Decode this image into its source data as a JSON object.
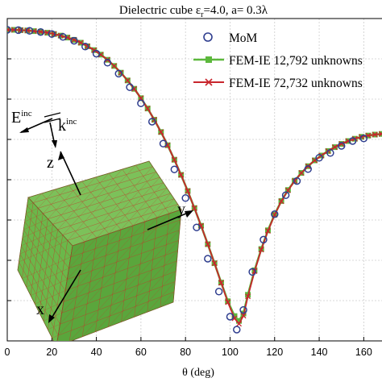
{
  "chart_data": {
    "type": "line",
    "title_main": "Dielectric cube ε",
    "title_sub": "r",
    "title_rest": "=4.0, a= 0.3λ",
    "xlabel_main": "θ",
    "xlabel_rest": " (deg)",
    "xlim": [
      0,
      170
    ],
    "ylim": [
      0,
      1
    ],
    "xticks": [
      0,
      20,
      40,
      60,
      80,
      100,
      120,
      140,
      160
    ],
    "grid": true,
    "legend_position": "top-right",
    "series": [
      {
        "name": "MoM",
        "style": "circle-markers",
        "color": "#2f3e8f",
        "x": [
          0,
          5,
          10,
          15,
          20,
          25,
          30,
          35,
          40,
          45,
          50,
          55,
          60,
          65,
          70,
          75,
          80,
          85,
          90,
          95,
          100,
          103,
          106,
          110,
          115,
          120,
          125,
          130,
          135,
          140,
          145,
          150,
          155,
          160
        ],
        "y": [
          0.965,
          0.964,
          0.962,
          0.958,
          0.952,
          0.943,
          0.931,
          0.913,
          0.891,
          0.863,
          0.829,
          0.787,
          0.737,
          0.68,
          0.612,
          0.532,
          0.443,
          0.352,
          0.255,
          0.153,
          0.075,
          0.035,
          0.096,
          0.214,
          0.314,
          0.393,
          0.452,
          0.496,
          0.533,
          0.568,
          0.583,
          0.605,
          0.62,
          0.628
        ]
      },
      {
        "name": "FEM-IE 12,792 unknowns",
        "style": "square-markers",
        "color": "#5cb83c",
        "x": [
          0,
          3,
          6,
          9,
          12,
          15,
          18,
          21,
          24,
          27,
          30,
          33,
          36,
          39,
          42,
          45,
          48,
          51,
          54,
          57,
          60,
          63,
          66,
          69,
          72,
          75,
          78,
          81,
          84,
          87,
          90,
          93,
          96,
          99,
          102,
          104,
          106,
          108,
          111,
          114,
          117,
          120,
          123,
          126,
          129,
          132,
          135,
          138,
          141,
          144,
          147,
          150,
          153,
          156,
          159,
          162,
          165,
          168
        ],
        "y": [
          0.965,
          0.965,
          0.964,
          0.963,
          0.961,
          0.959,
          0.956,
          0.952,
          0.947,
          0.941,
          0.934,
          0.925,
          0.914,
          0.902,
          0.888,
          0.872,
          0.853,
          0.832,
          0.808,
          0.782,
          0.753,
          0.721,
          0.686,
          0.648,
          0.607,
          0.562,
          0.515,
          0.465,
          0.412,
          0.357,
          0.3,
          0.241,
          0.181,
          0.123,
          0.077,
          0.062,
          0.085,
          0.143,
          0.219,
          0.285,
          0.343,
          0.392,
          0.434,
          0.468,
          0.497,
          0.521,
          0.542,
          0.56,
          0.575,
          0.589,
          0.601,
          0.611,
          0.62,
          0.627,
          0.633,
          0.637,
          0.64,
          0.642
        ]
      },
      {
        "name": "FEM-IE 72,732 unknowns",
        "style": "x-markers",
        "color": "#c8262d",
        "x": [
          0,
          3,
          6,
          9,
          12,
          15,
          18,
          21,
          24,
          27,
          30,
          33,
          36,
          39,
          42,
          45,
          48,
          51,
          54,
          57,
          60,
          63,
          66,
          69,
          72,
          75,
          78,
          81,
          84,
          87,
          90,
          93,
          96,
          99,
          102,
          104,
          106,
          108,
          111,
          114,
          117,
          120,
          123,
          126,
          129,
          132,
          135,
          138,
          141,
          144,
          147,
          150,
          153,
          156,
          159,
          162,
          165,
          168
        ],
        "y": [
          0.965,
          0.965,
          0.964,
          0.963,
          0.961,
          0.959,
          0.956,
          0.952,
          0.947,
          0.941,
          0.934,
          0.925,
          0.914,
          0.902,
          0.888,
          0.872,
          0.853,
          0.832,
          0.808,
          0.782,
          0.753,
          0.721,
          0.686,
          0.648,
          0.607,
          0.562,
          0.515,
          0.465,
          0.412,
          0.357,
          0.3,
          0.241,
          0.18,
          0.12,
          0.07,
          0.053,
          0.078,
          0.138,
          0.216,
          0.283,
          0.341,
          0.391,
          0.433,
          0.467,
          0.496,
          0.521,
          0.542,
          0.56,
          0.575,
          0.589,
          0.601,
          0.611,
          0.62,
          0.627,
          0.633,
          0.637,
          0.64,
          0.642
        ]
      }
    ],
    "annotations": {
      "e_main": "E",
      "e_sup": "inc",
      "k_main": "k",
      "k_sup": "inc",
      "z_axis": "z",
      "y_axis": "y",
      "x_axis": "x"
    },
    "colors": {
      "cube_top": "#7cc15a",
      "cube_front": "#6ab84a",
      "cube_side": "#5aa63c",
      "mesh": "#c0392b"
    }
  }
}
